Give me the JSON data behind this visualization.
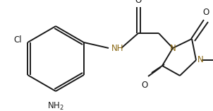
{
  "bg_color": "#ffffff",
  "line_color": "#1a1a1a",
  "N_color": "#8B6914",
  "figsize": [
    3.02,
    1.57
  ],
  "dpi": 100,
  "xlim": [
    0,
    302
  ],
  "ylim": [
    0,
    157
  ]
}
